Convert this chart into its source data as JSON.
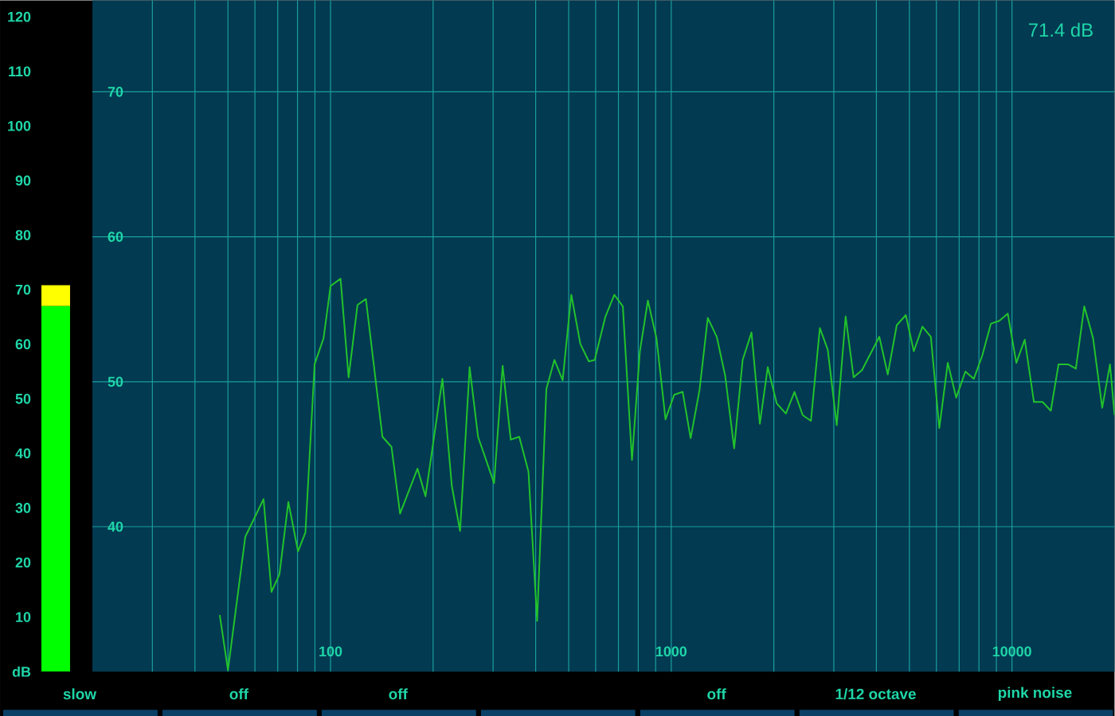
{
  "chart_data": [
    {
      "type": "bar",
      "categories": [
        null
      ],
      "stacked": true,
      "ylim": [
        0,
        123
      ],
      "yticks": [
        {
          "value": 0,
          "label": "dB"
        },
        10,
        20,
        30,
        40,
        50,
        60,
        70,
        80,
        90,
        100,
        110,
        120
      ],
      "series": [
        {
          "color": "#00ff00",
          "values": [
            67
          ]
        },
        {
          "color": "#ffff00",
          "values": [
            3.8
          ]
        }
      ]
    },
    {
      "type": "line",
      "log": "x",
      "grid": true,
      "xlim": [
        20,
        20000
      ],
      "ylim": [
        30,
        76.3
      ],
      "xticks": [
        {
          "value": 30,
          "label": null
        },
        {
          "value": 40,
          "label": null
        },
        {
          "value": 50,
          "label": null
        },
        {
          "value": 60,
          "label": null
        },
        {
          "value": 70,
          "label": null
        },
        {
          "value": 80,
          "label": null
        },
        {
          "value": 90,
          "label": null
        },
        100,
        {
          "value": 200,
          "label": null
        },
        {
          "value": 300,
          "label": null
        },
        {
          "value": 400,
          "label": null
        },
        {
          "value": 500,
          "label": null
        },
        {
          "value": 600,
          "label": null
        },
        {
          "value": 700,
          "label": null
        },
        {
          "value": 800,
          "label": null
        },
        {
          "value": 900,
          "label": null
        },
        1000,
        {
          "value": 2000,
          "label": null
        },
        {
          "value": 3000,
          "label": null
        },
        {
          "value": 4000,
          "label": null
        },
        {
          "value": 5000,
          "label": null
        },
        {
          "value": 6000,
          "label": null
        },
        {
          "value": 7000,
          "label": null
        },
        {
          "value": 8000,
          "label": null
        },
        {
          "value": 9000,
          "label": null
        },
        10000
      ],
      "yticks": [
        40,
        50,
        60,
        70
      ],
      "annotations": [
        "71.4 dB",
        "slow",
        "off",
        "off",
        "off",
        "1/12 octave",
        "pink noise"
      ],
      "x": [
        47.3,
        50.0,
        56.2,
        63.6,
        67.1,
        70.8,
        75.2,
        80.3,
        84.4,
        89.8,
        95.4,
        100,
        107,
        113,
        120,
        127,
        142,
        151,
        160,
        180,
        190,
        213,
        227,
        240,
        256,
        271,
        302,
        320,
        338,
        358,
        381,
        404,
        430,
        454,
        480,
        509,
        541,
        573,
        596,
        641,
        681,
        721,
        767,
        809,
        854,
        905,
        962,
        1020,
        1080,
        1140,
        1210,
        1280,
        1360,
        1440,
        1530,
        1620,
        1720,
        1820,
        1920,
        2040,
        2170,
        2300,
        2430,
        2570,
        2730,
        2880,
        3060,
        3250,
        3430,
        3630,
        4080,
        4320,
        4590,
        4880,
        5150,
        5460,
        5780,
        6120,
        6480,
        6860,
        7300,
        7730,
        8180,
        8670,
        9180,
        9720,
        10300,
        10900,
        11600,
        12300,
        13000,
        13700,
        14600,
        15400,
        16300,
        17300,
        18400,
        19400,
        20000
      ],
      "series": [
        {
          "color": "#22c22b",
          "values": [
            33.9,
            30.1,
            39.3,
            41.9,
            35.5,
            36.7,
            41.7,
            38.3,
            39.6,
            51.2,
            53.0,
            56.6,
            57.1,
            50.3,
            55.3,
            55.7,
            46.2,
            45.5,
            40.9,
            44.0,
            42.1,
            50.2,
            42.8,
            39.7,
            51.0,
            46.2,
            43.0,
            51.1,
            46.0,
            46.2,
            43.8,
            33.5,
            49.5,
            51.5,
            50.1,
            56.0,
            52.6,
            51.4,
            51.5,
            54.5,
            56.0,
            55.2,
            44.6,
            52.1,
            55.6,
            53.0,
            47.4,
            49.1,
            49.3,
            46.1,
            49.4,
            54.4,
            53.1,
            50.4,
            45.4,
            51.5,
            53.4,
            47.1,
            51.0,
            48.5,
            47.8,
            49.3,
            47.7,
            47.3,
            53.7,
            52.2,
            47.0,
            54.5,
            50.3,
            50.8,
            53.1,
            50.5,
            53.9,
            54.6,
            52.1,
            53.8,
            53.1,
            46.8,
            51.3,
            48.9,
            50.7,
            50.2,
            51.8,
            54.0,
            54.2,
            54.7,
            51.3,
            52.9,
            48.6,
            48.6,
            48.0,
            51.2,
            51.2,
            50.9,
            55.2,
            53.0,
            48.2,
            51.2,
            47.7
          ]
        }
      ]
    }
  ]
}
